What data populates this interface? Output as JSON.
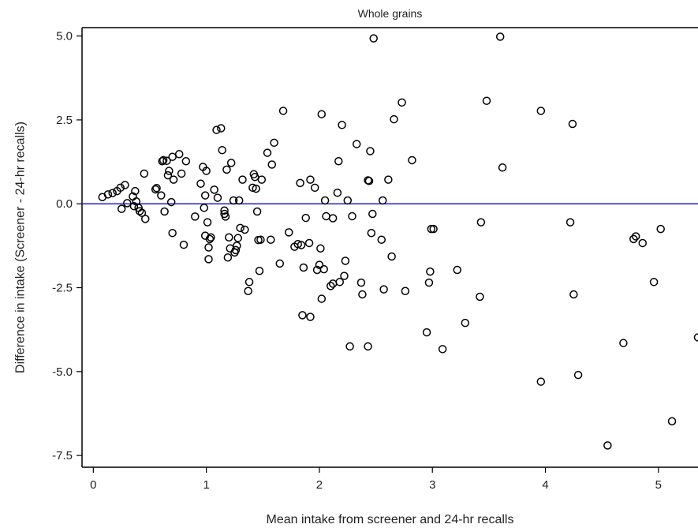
{
  "chart_data": {
    "type": "scatter",
    "title": "Whole grains",
    "xlabel": "Mean intake from screener and 24-hr recalls",
    "ylabel": "Difference in intake (Screener - 24-hr recalls)",
    "xlim": [
      -0.1,
      5.35
    ],
    "ylim": [
      -7.85,
      5.25
    ],
    "xticks": [
      0,
      1,
      2,
      3,
      4,
      5
    ],
    "xtick_labels": [
      "0",
      "1",
      "2",
      "3",
      "4",
      "5"
    ],
    "yticks": [
      -7.5,
      -5.0,
      -2.5,
      0.0,
      2.5,
      5.0
    ],
    "ytick_labels": [
      "-7.5",
      "-5.0",
      "-2.5",
      "0.0",
      "2.5",
      "5.0"
    ],
    "reference_line": {
      "y": 0,
      "color": "#1f1fd6"
    },
    "grid": false,
    "marker": "open-circle",
    "points": [
      [
        0.08,
        0.2
      ],
      [
        0.13,
        0.28
      ],
      [
        0.17,
        0.32
      ],
      [
        0.21,
        0.38
      ],
      [
        0.24,
        0.48
      ],
      [
        0.25,
        -0.15
      ],
      [
        0.28,
        0.56
      ],
      [
        0.3,
        0.02
      ],
      [
        0.35,
        0.22
      ],
      [
        0.36,
        -0.07
      ],
      [
        0.37,
        0.38
      ],
      [
        0.38,
        0.07
      ],
      [
        0.4,
        -0.12
      ],
      [
        0.41,
        -0.22
      ],
      [
        0.43,
        -0.27
      ],
      [
        0.45,
        0.9
      ],
      [
        0.46,
        -0.45
      ],
      [
        0.55,
        0.43
      ],
      [
        0.56,
        0.47
      ],
      [
        0.6,
        0.25
      ],
      [
        0.61,
        1.27
      ],
      [
        0.62,
        1.3
      ],
      [
        0.63,
        -0.23
      ],
      [
        0.65,
        1.28
      ],
      [
        0.66,
        0.85
      ],
      [
        0.67,
        0.98
      ],
      [
        0.69,
        0.05
      ],
      [
        0.7,
        -0.87
      ],
      [
        0.7,
        1.4
      ],
      [
        0.71,
        0.72
      ],
      [
        0.76,
        1.48
      ],
      [
        0.78,
        0.9
      ],
      [
        0.8,
        -1.22
      ],
      [
        0.82,
        1.27
      ],
      [
        0.9,
        -0.38
      ],
      [
        0.95,
        0.6
      ],
      [
        0.97,
        1.1
      ],
      [
        0.98,
        -0.12
      ],
      [
        0.99,
        0.25
      ],
      [
        0.99,
        -0.95
      ],
      [
        1.0,
        0.98
      ],
      [
        1.01,
        -0.55
      ],
      [
        1.02,
        -1.3
      ],
      [
        1.03,
        -1.05
      ],
      [
        1.04,
        -1.0
      ],
      [
        1.02,
        -1.65
      ],
      [
        1.07,
        0.42
      ],
      [
        1.09,
        2.2
      ],
      [
        1.1,
        0.18
      ],
      [
        1.13,
        2.25
      ],
      [
        1.14,
        1.6
      ],
      [
        1.16,
        -0.2
      ],
      [
        1.16,
        -0.3
      ],
      [
        1.17,
        -0.38
      ],
      [
        1.18,
        1.02
      ],
      [
        1.19,
        -1.6
      ],
      [
        1.2,
        -1.0
      ],
      [
        1.21,
        -1.33
      ],
      [
        1.22,
        1.22
      ],
      [
        1.24,
        0.1
      ],
      [
        1.25,
        -1.45
      ],
      [
        1.26,
        -1.38
      ],
      [
        1.27,
        -1.25
      ],
      [
        1.28,
        -1.02
      ],
      [
        1.29,
        0.1
      ],
      [
        1.3,
        -0.72
      ],
      [
        1.32,
        0.72
      ],
      [
        1.34,
        -0.77
      ],
      [
        1.37,
        -2.6
      ],
      [
        1.38,
        -2.33
      ],
      [
        1.41,
        0.48
      ],
      [
        1.42,
        0.88
      ],
      [
        1.43,
        0.8
      ],
      [
        1.44,
        0.45
      ],
      [
        1.45,
        -0.23
      ],
      [
        1.46,
        -1.08
      ],
      [
        1.47,
        -2.0
      ],
      [
        1.48,
        -1.07
      ],
      [
        1.49,
        0.72
      ],
      [
        1.54,
        1.52
      ],
      [
        1.57,
        -1.07
      ],
      [
        1.58,
        1.17
      ],
      [
        1.6,
        1.82
      ],
      [
        1.65,
        -1.78
      ],
      [
        1.68,
        2.77
      ],
      [
        1.73,
        -0.85
      ],
      [
        1.78,
        -1.28
      ],
      [
        1.81,
        -1.2
      ],
      [
        1.83,
        0.62
      ],
      [
        1.84,
        -1.23
      ],
      [
        1.85,
        -3.32
      ],
      [
        1.86,
        -1.9
      ],
      [
        1.88,
        -0.42
      ],
      [
        1.91,
        -1.17
      ],
      [
        1.92,
        0.72
      ],
      [
        1.92,
        -3.37
      ],
      [
        1.96,
        0.48
      ],
      [
        1.98,
        -1.97
      ],
      [
        2.0,
        -1.82
      ],
      [
        2.01,
        -1.33
      ],
      [
        2.02,
        2.67
      ],
      [
        2.02,
        -2.83
      ],
      [
        2.04,
        -1.95
      ],
      [
        2.05,
        0.1
      ],
      [
        2.06,
        -0.37
      ],
      [
        2.1,
        -2.45
      ],
      [
        2.12,
        -2.38
      ],
      [
        2.12,
        -0.43
      ],
      [
        2.16,
        0.33
      ],
      [
        2.17,
        1.27
      ],
      [
        2.18,
        -2.33
      ],
      [
        2.2,
        2.35
      ],
      [
        2.22,
        -2.15
      ],
      [
        2.23,
        -1.7
      ],
      [
        2.25,
        0.1
      ],
      [
        2.27,
        -4.25
      ],
      [
        2.29,
        -0.37
      ],
      [
        2.33,
        1.78
      ],
      [
        2.37,
        -2.35
      ],
      [
        2.38,
        -2.7
      ],
      [
        2.43,
        -4.25
      ],
      [
        2.43,
        0.7
      ],
      [
        2.44,
        0.68
      ],
      [
        2.45,
        1.57
      ],
      [
        2.46,
        -0.87
      ],
      [
        2.47,
        -0.3
      ],
      [
        2.48,
        4.93
      ],
      [
        2.55,
        -1.07
      ],
      [
        2.56,
        0.1
      ],
      [
        2.57,
        -2.55
      ],
      [
        2.61,
        0.72
      ],
      [
        2.64,
        -1.57
      ],
      [
        2.66,
        2.52
      ],
      [
        2.73,
        3.02
      ],
      [
        2.76,
        -2.6
      ],
      [
        2.82,
        1.3
      ],
      [
        2.95,
        -3.83
      ],
      [
        2.97,
        -2.35
      ],
      [
        2.98,
        -2.02
      ],
      [
        2.99,
        -0.75
      ],
      [
        3.01,
        -0.75
      ],
      [
        3.09,
        -4.33
      ],
      [
        3.22,
        -1.97
      ],
      [
        3.29,
        -3.55
      ],
      [
        3.42,
        -2.77
      ],
      [
        3.43,
        -0.55
      ],
      [
        3.48,
        3.07
      ],
      [
        3.6,
        4.98
      ],
      [
        3.62,
        1.08
      ],
      [
        3.96,
        -5.3
      ],
      [
        3.96,
        2.77
      ],
      [
        4.22,
        -0.55
      ],
      [
        4.24,
        2.38
      ],
      [
        4.25,
        -2.7
      ],
      [
        4.29,
        -5.1
      ],
      [
        4.55,
        -7.2
      ],
      [
        4.69,
        -4.15
      ],
      [
        4.78,
        -1.05
      ],
      [
        4.8,
        -0.97
      ],
      [
        4.86,
        -1.17
      ],
      [
        4.96,
        -2.33
      ],
      [
        5.02,
        -0.75
      ],
      [
        5.12,
        -6.48
      ],
      [
        5.35,
        -3.98
      ]
    ]
  }
}
